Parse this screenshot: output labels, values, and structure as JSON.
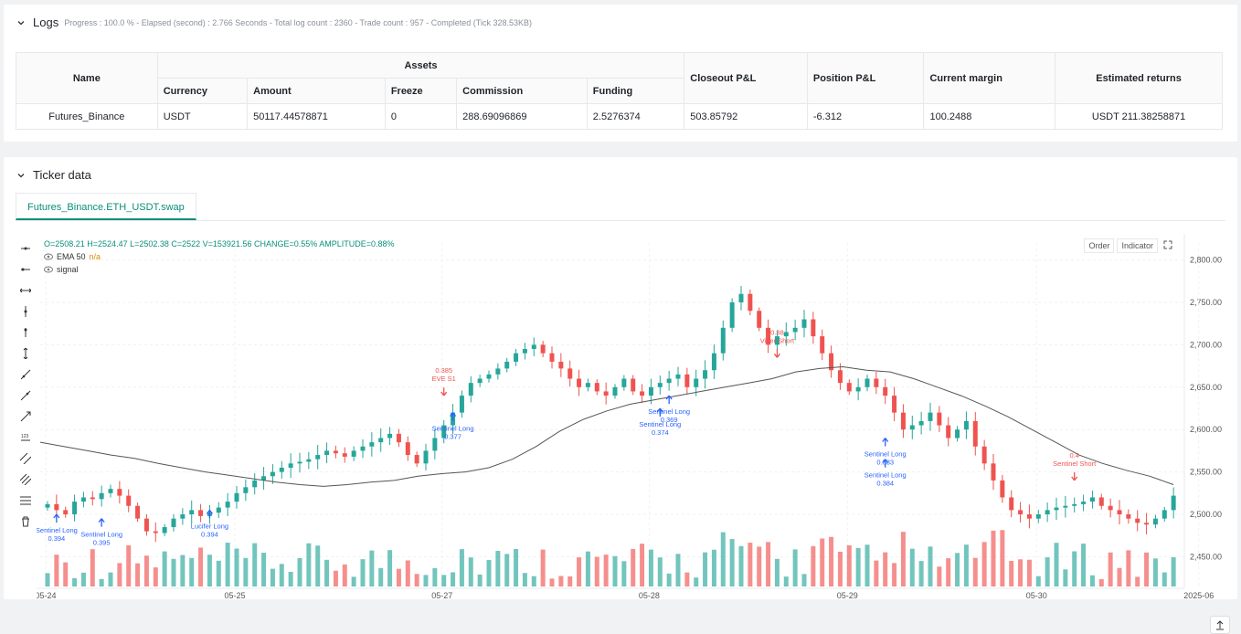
{
  "logs": {
    "title": "Logs",
    "status": "Progress : 100.0 % - Elapsed (second) : 2.766  Seconds - Total log count : 2360 - Trade count : 957 - Completed (Tick 328.53KB)",
    "table": {
      "name_header": "Name",
      "assets_header": "Assets",
      "sub_headers": [
        "Currency",
        "Amount",
        "Freeze",
        "Commission",
        "Funding"
      ],
      "closeout_header": "Closeout P&L",
      "position_header": "Position P&L",
      "margin_header": "Current margin",
      "returns_header": "Estimated returns",
      "row": {
        "name": "Futures_Binance",
        "currency": "USDT",
        "amount": "50117.44578871",
        "freeze": "0",
        "commission": "288.69096869",
        "funding": "2.5276374",
        "closeout": "503.85792",
        "position": "-6.312",
        "margin": "100.2488",
        "returns": "USDT 211.38258871"
      }
    }
  },
  "ticker": {
    "title": "Ticker data",
    "tab": "Futures_Binance.ETH_USDT.swap",
    "legend": {
      "ohlc": "O=2508.21  H=2524.47  L=2502.38  C=2522  V=153921.56  CHANGE=0.55%  AMPLITUDE=0.88%",
      "ema": "EMA 50",
      "ema_value": "n/a",
      "signal": "signal"
    },
    "buttons": {
      "order": "Order",
      "indicator": "Indicator"
    }
  },
  "colors": {
    "up": "#26a69a",
    "down": "#ef5350",
    "accent": "#0a8f7a",
    "signal_long": "#2962ff",
    "signal_short": "#ef5350"
  },
  "chart_data": {
    "type": "candlestick",
    "x_ticks": [
      "05-24",
      "05-25",
      "05-27",
      "05-28",
      "05-29",
      "05-30",
      "2025-06"
    ],
    "y_ticks": [
      2450,
      2500,
      2550,
      2600,
      2650,
      2700,
      2750,
      2800
    ],
    "ylim": [
      2430,
      2820
    ],
    "close_path": [
      2512,
      2505,
      2500,
      2515,
      2520,
      2518,
      2525,
      2530,
      2522,
      2510,
      2495,
      2480,
      2478,
      2485,
      2495,
      2500,
      2505,
      2498,
      2502,
      2508,
      2515,
      2525,
      2532,
      2540,
      2545,
      2550,
      2555,
      2560,
      2562,
      2565,
      2570,
      2575,
      2572,
      2568,
      2575,
      2580,
      2585,
      2590,
      2595,
      2585,
      2570,
      2560,
      2575,
      2590,
      2605,
      2620,
      2640,
      2655,
      2660,
      2665,
      2672,
      2680,
      2690,
      2695,
      2700,
      2690,
      2680,
      2672,
      2660,
      2650,
      2655,
      2645,
      2640,
      2650,
      2660,
      2645,
      2640,
      2650,
      2655,
      2660,
      2665,
      2650,
      2660,
      2670,
      2690,
      2720,
      2750,
      2760,
      2740,
      2720,
      2700,
      2710,
      2715,
      2720,
      2730,
      2710,
      2690,
      2670,
      2655,
      2645,
      2650,
      2660,
      2650,
      2640,
      2620,
      2600,
      2605,
      2610,
      2620,
      2605,
      2590,
      2600,
      2610,
      2580,
      2560,
      2540,
      2520,
      2505,
      2500,
      2495,
      2500,
      2505,
      2508,
      2510,
      2512,
      2515,
      2520,
      2510,
      2505,
      2500,
      2495,
      2490,
      2488,
      2495,
      2505,
      2522
    ],
    "ema50": [
      2585,
      2580,
      2575,
      2570,
      2566,
      2560,
      2555,
      2550,
      2546,
      2542,
      2538,
      2535,
      2533,
      2535,
      2538,
      2540,
      2545,
      2548,
      2550,
      2555,
      2565,
      2580,
      2598,
      2612,
      2622,
      2630,
      2635,
      2640,
      2645,
      2650,
      2655,
      2660,
      2668,
      2672,
      2674,
      2670,
      2668,
      2660,
      2650,
      2640,
      2628,
      2615,
      2600,
      2585,
      2570,
      2560,
      2552,
      2545,
      2535
    ],
    "volume_max": 100,
    "signals": [
      {
        "label": "Sentinel Long",
        "value": "0.395",
        "dir": "long"
      },
      {
        "label": "Lucifer Long",
        "value": "0.394",
        "dir": "long"
      },
      {
        "label": "Sentinel Long",
        "value": "0.377",
        "dir": "long"
      },
      {
        "label": "EVE S1",
        "value": "0.385",
        "dir": "short"
      },
      {
        "label": "Sentinel Long",
        "value": "0.374",
        "dir": "long"
      },
      {
        "label": "Sentinel Long",
        "value": "0.369",
        "dir": "long"
      },
      {
        "label": "Viper Short",
        "value": "0.38",
        "dir": "short"
      },
      {
        "label": "Sentinel Long",
        "value": "0.384",
        "dir": "long"
      },
      {
        "label": "Sentinel Long",
        "value": "0.383",
        "dir": "long"
      },
      {
        "label": "Sentinel Short",
        "value": "0.4",
        "dir": "short"
      },
      {
        "label": "Sentinel Long",
        "value": "0.394",
        "dir": "long"
      }
    ]
  }
}
